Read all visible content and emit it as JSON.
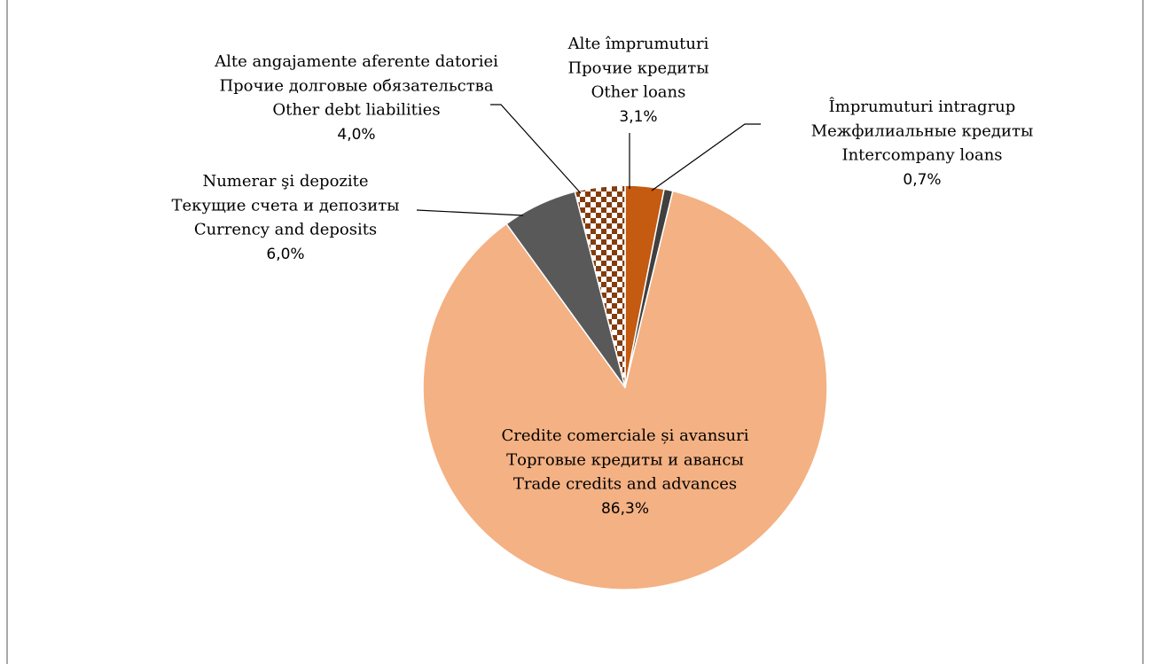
{
  "chart_data": {
    "type": "pie",
    "categories": [
      [
        "Alte împrumuturi",
        "Прочие кредиты",
        "Other loans"
      ],
      [
        "Împrumuturi intragrup",
        "Межфилиальные кредиты",
        "Intercompany loans"
      ],
      [
        "Credite comerciale și avansuri",
        "Торговые кредиты и авансы",
        "Trade credits and advances"
      ],
      [
        "Numerar şi depozite",
        "Текущие счета и депозиты",
        "Currency and deposits"
      ],
      [
        "Alte angajamente aferente datoriei",
        "Прочие долговые обязательства",
        "Other debt liabilities"
      ]
    ],
    "values": [
      3.1,
      0.7,
      86.3,
      6.0,
      4.0
    ],
    "value_labels": [
      "3,1%",
      "0,7%",
      "86,3%",
      "6,0%",
      "4,0%"
    ],
    "colors": [
      "#c55a11",
      "#404040",
      "#f4b183",
      "#595959",
      "checker"
    ]
  }
}
